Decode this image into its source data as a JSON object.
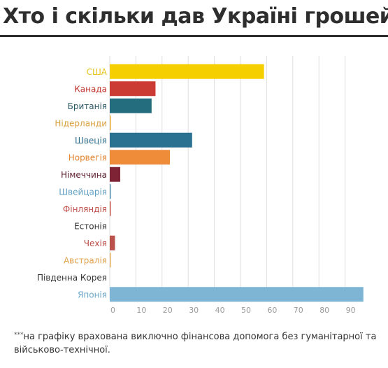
{
  "title": "Хто і скільки дав Україні грошей",
  "footnote": {
    "marker": "***",
    "text": "на графіку врахована виключно фінансова допомога без гуманітарної та військово-технічної."
  },
  "chart_data": {
    "type": "bar",
    "orientation": "horizontal",
    "categories": [
      "США",
      "Канада",
      "Британія",
      "Нідерланди",
      "Швеція",
      "Норвегія",
      "Німеччина",
      "Швейцарія",
      "Фінляндія",
      "Естонія",
      "Чехія",
      "Австралія",
      "Південна Корея",
      "Японія"
    ],
    "values": [
      59,
      17.5,
      16,
      0.3,
      31.5,
      23,
      4,
      0.3,
      0.3,
      0,
      2,
      0.2,
      0,
      97
    ],
    "colors": [
      "#f5cf00",
      "#cc3a34",
      "#246d7e",
      "#e7a93a",
      "#2a7191",
      "#ef8c3a",
      "#7e2335",
      "#5191b5",
      "#c85a52",
      "#444444",
      "#b8524b",
      "#e8ab58",
      "#444444",
      "#7eb5d4"
    ],
    "label_colors": [
      "#e6c419",
      "#c0302a",
      "#2b5a66",
      "#dba040",
      "#2c6b8b",
      "#e3822d",
      "#5a1a2a",
      "#5f9ec2",
      "#c0504b",
      "#333333",
      "#bb4a44",
      "#e0a24c",
      "#333333",
      "#6aa7c9"
    ],
    "xticks": [
      0,
      10,
      20,
      30,
      40,
      50,
      60,
      70,
      80,
      90
    ],
    "xlim": [
      0,
      100
    ],
    "grid": true
  }
}
